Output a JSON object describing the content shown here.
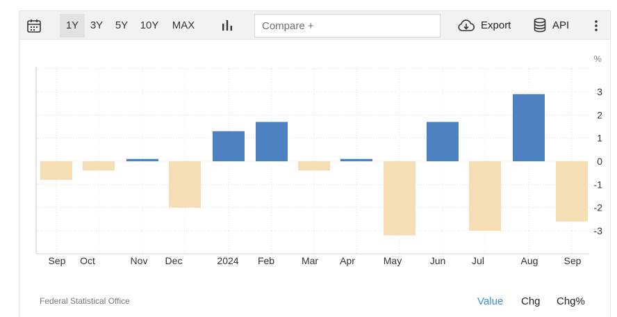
{
  "toolbar": {
    "ranges": [
      "1Y",
      "3Y",
      "5Y",
      "10Y",
      "MAX"
    ],
    "active_range": "1Y",
    "compare_placeholder": "Compare +",
    "export_label": "Export",
    "api_label": "API",
    "icons": [
      "calendar-icon",
      "bar-chart-icon",
      "cloud-download-icon",
      "database-icon",
      "more-vertical-icon"
    ]
  },
  "chart_data": {
    "type": "bar",
    "categories": [
      "Sep",
      "Oct",
      "Nov",
      "Dec",
      "2024",
      "Feb",
      "Mar",
      "Apr",
      "May",
      "Jun",
      "Jul",
      "Aug",
      "Sep"
    ],
    "values": [
      -0.8,
      -0.4,
      0.1,
      -2.0,
      1.3,
      1.7,
      -0.4,
      0.1,
      -3.2,
      1.7,
      -3.0,
      2.9,
      -2.6
    ],
    "ylabel": "%",
    "yticks": [
      3,
      2,
      1,
      0,
      -1,
      -2,
      -3
    ],
    "ylim": [
      -4,
      4
    ],
    "grid": true,
    "colors": {
      "positive": "#4d80bf",
      "negative": "#f5deb3"
    }
  },
  "footer": {
    "source": "Federal Statistical Office",
    "tabs": [
      "Value",
      "Chg",
      "Chg%"
    ],
    "active_tab": "Value"
  }
}
